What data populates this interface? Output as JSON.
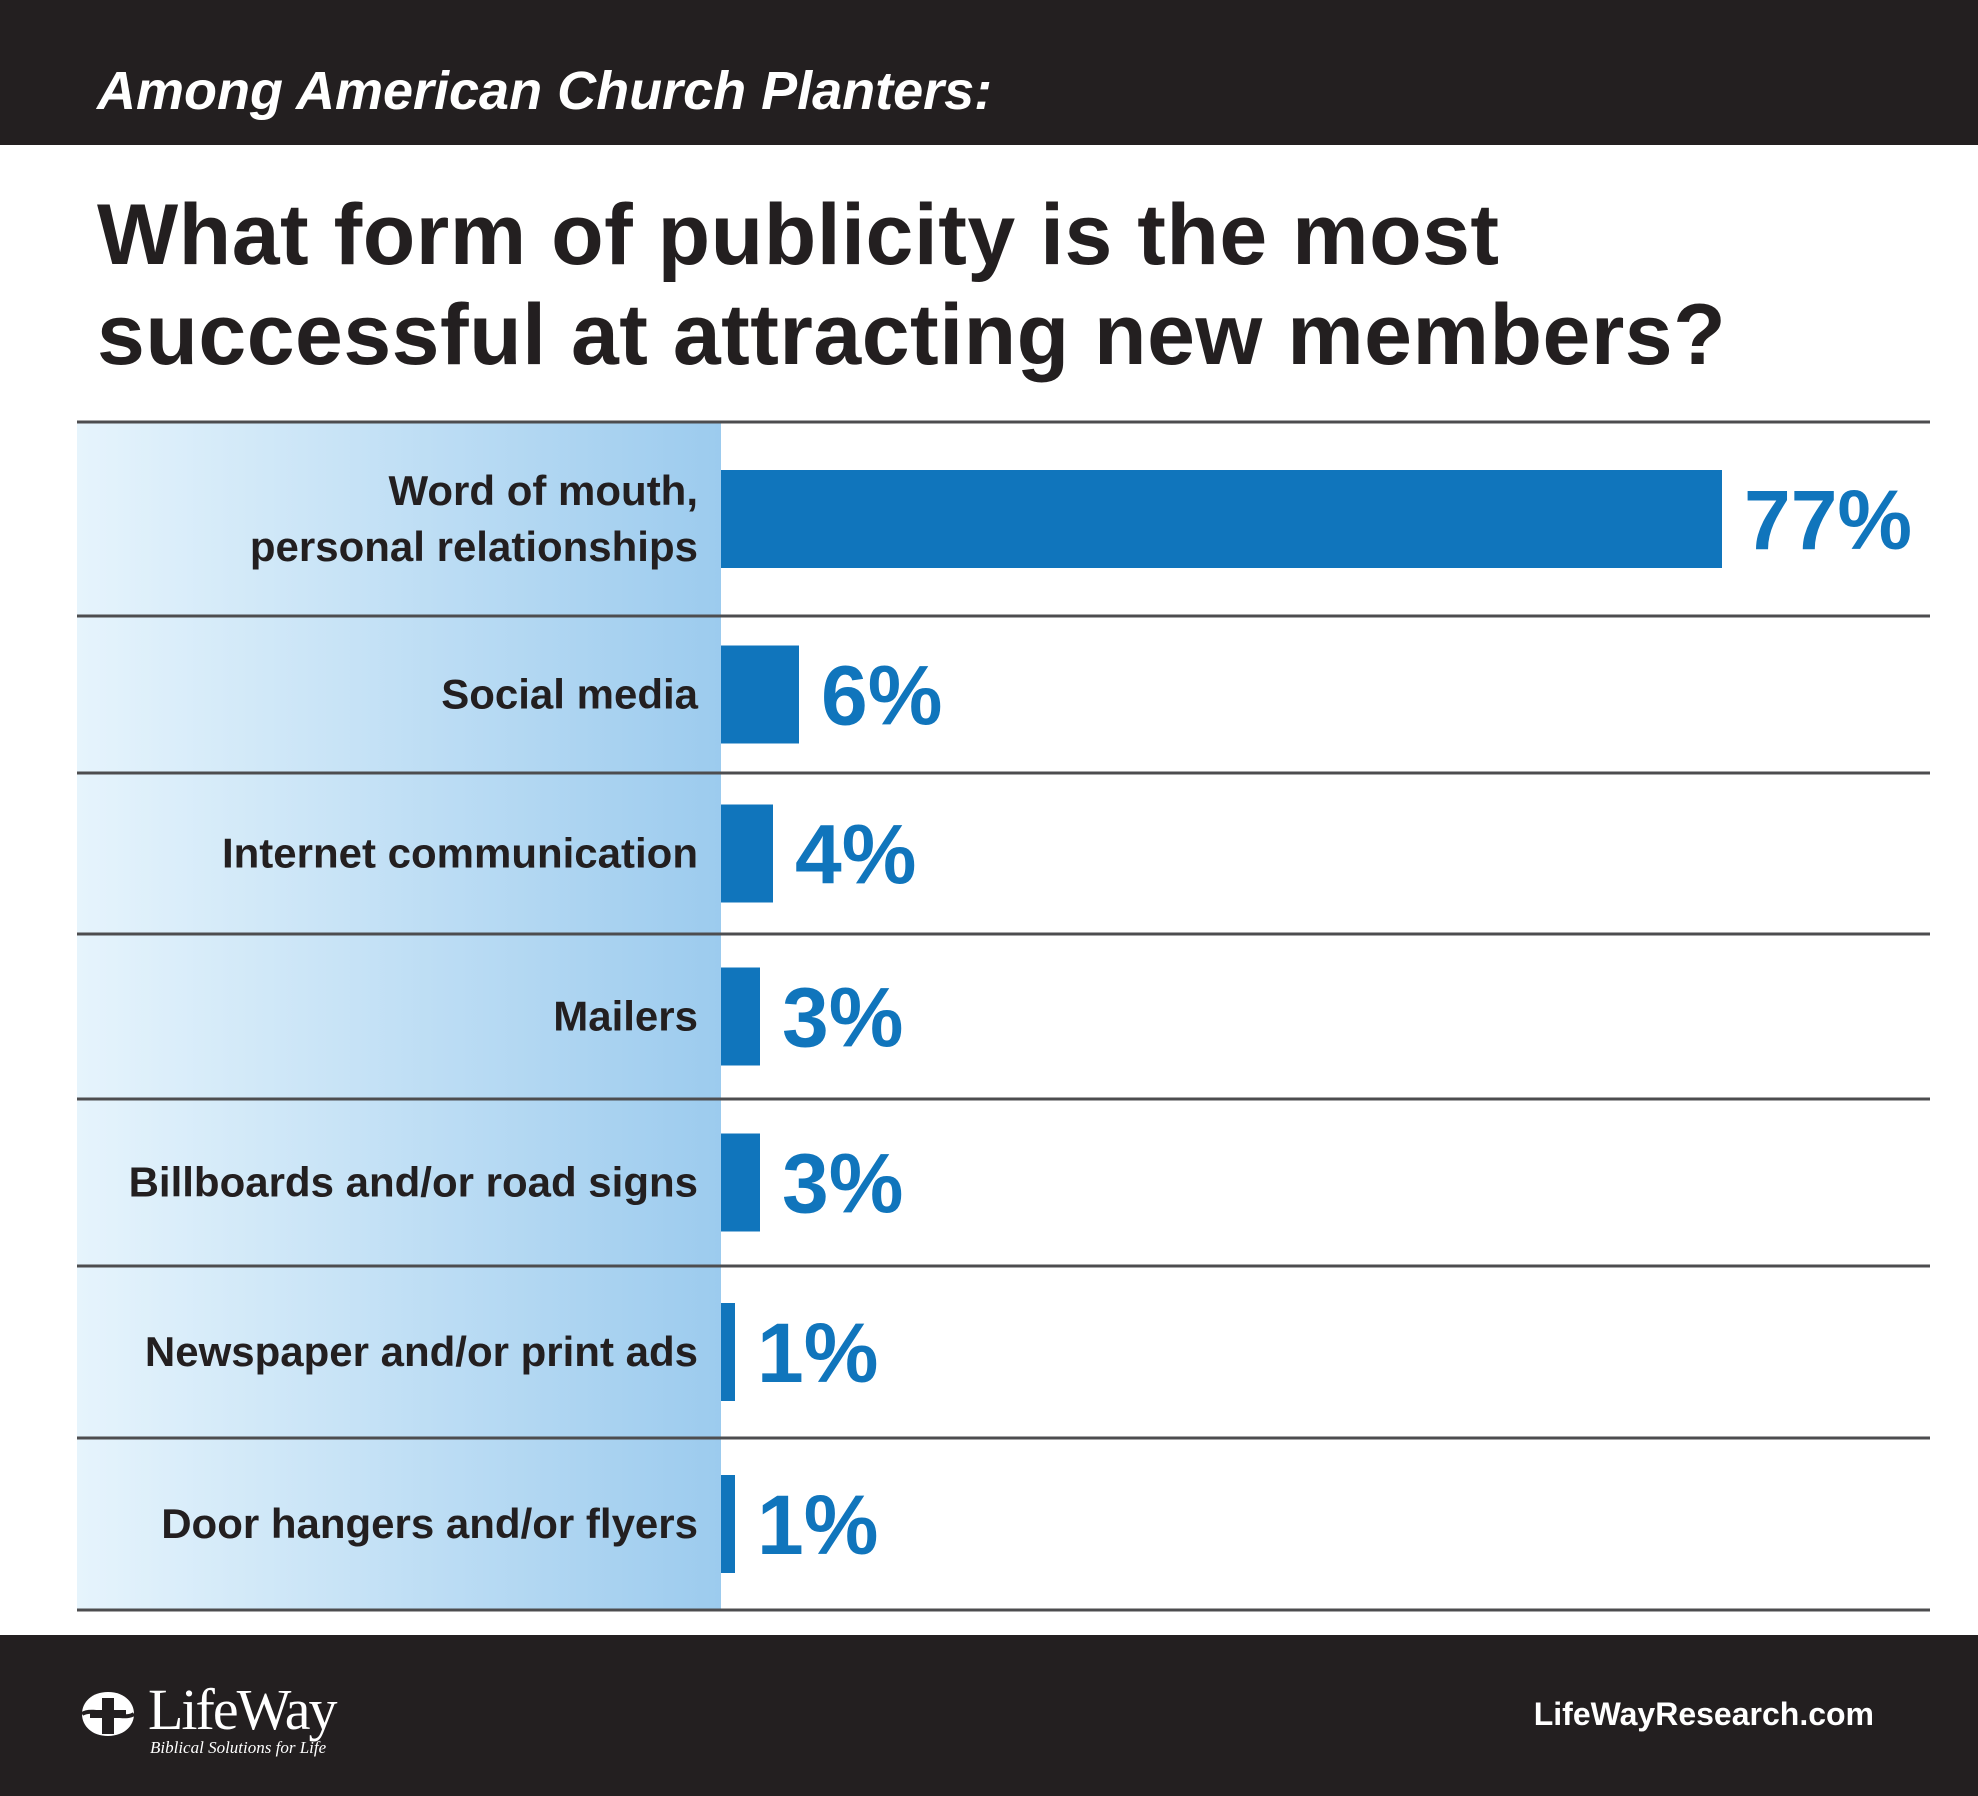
{
  "header": {
    "subtitle": "Among American Church Planters:",
    "title_line1": "What form of publicity is the most",
    "title_line2": "successful at attracting new members?"
  },
  "footer": {
    "logo_text": "LifeWay",
    "logo_tagline": "Biblical Solutions for Life",
    "site_url": "LifeWayResearch.com"
  },
  "colors": {
    "bar": "#1075bc",
    "banner": "#231f20",
    "label_panel_light": "#e6f4fc",
    "label_panel_dark": "#9ccbee",
    "rule": "#4d4d4f"
  },
  "chart_data": {
    "type": "bar",
    "orientation": "horizontal",
    "title": "What form of publicity is the most successful at attracting new members?",
    "subtitle": "Among American Church Planters:",
    "categories": [
      [
        "Word of mouth,",
        "personal relationships"
      ],
      [
        "Social media"
      ],
      [
        "Internet communication"
      ],
      [
        "Mailers"
      ],
      [
        "Billboards and/or road signs"
      ],
      [
        "Newspaper and/or print ads"
      ],
      [
        "Door hangers and/or flyers"
      ]
    ],
    "values": [
      77,
      6,
      4,
      3,
      3,
      1,
      1
    ],
    "value_labels": [
      "77%",
      "6%",
      "4%",
      "3%",
      "3%",
      "1%",
      "1%"
    ],
    "unit": "%",
    "xlim": [
      0,
      100
    ],
    "grid": false,
    "legend": "none"
  }
}
